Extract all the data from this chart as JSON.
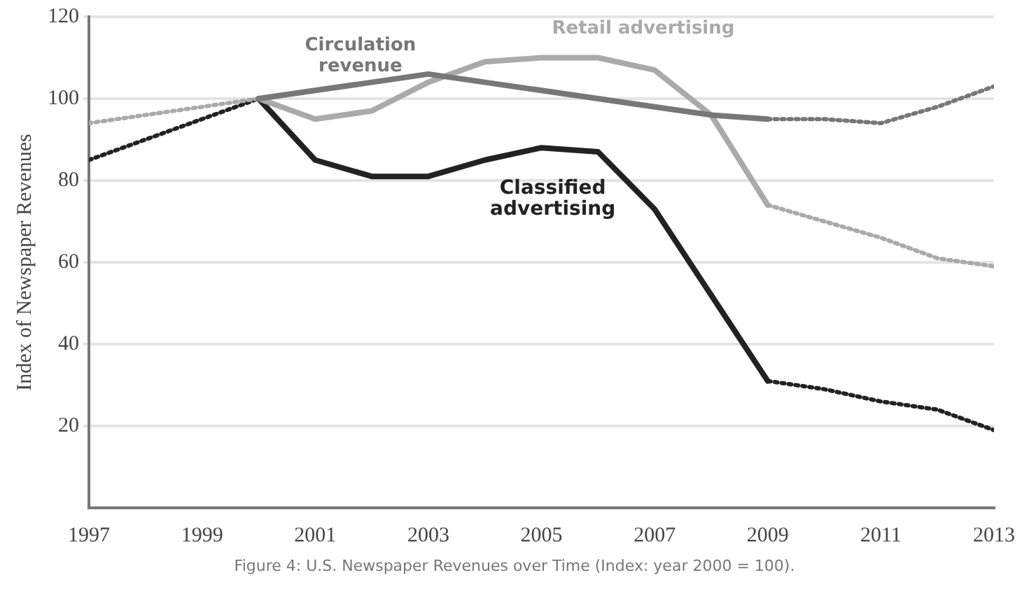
{
  "chart_data": {
    "type": "line",
    "ylabel": "Index of Newspaper Revenues",
    "xlim": [
      1997,
      2013
    ],
    "xticks": [
      1997,
      1999,
      2001,
      2003,
      2005,
      2007,
      2009,
      2011,
      2013
    ],
    "ylim": [
      0,
      120
    ],
    "yticks": [
      20,
      40,
      60,
      80,
      100,
      120
    ],
    "grid": "y",
    "legend": false,
    "marker": "none",
    "annotations": [
      "Figure 4: U.S. Newspaper Revenues over Time (Index: year 2000 = 100)."
    ],
    "series": [
      {
        "name": "Circulation revenue",
        "color": "#777777",
        "line_style": "solid",
        "x": [
          2000,
          2001,
          2002,
          2003,
          2004,
          2005,
          2006,
          2007,
          2008,
          2009
        ],
        "values": [
          100,
          102,
          104,
          106,
          104,
          102,
          100,
          98,
          96,
          95
        ]
      },
      {
        "color": "#777777",
        "line_style": "dotted",
        "x": [
          2009,
          2010,
          2011,
          2012,
          2013
        ],
        "values": [
          95,
          95,
          94,
          98,
          103
        ]
      },
      {
        "name": "Retail advertising",
        "color": "#aaaaaa",
        "line_style": "solid",
        "x": [
          2000,
          2001,
          2002,
          2003,
          2004,
          2005,
          2006,
          2007,
          2008,
          2009
        ],
        "values": [
          100,
          95,
          97,
          104,
          109,
          110,
          110,
          107,
          96,
          74
        ]
      },
      {
        "color": "#aaaaaa",
        "line_style": "dotted",
        "x": [
          1997,
          1998,
          1999,
          2000
        ],
        "values": [
          94,
          96,
          98,
          100
        ]
      },
      {
        "color": "#aaaaaa",
        "line_style": "dotted",
        "x": [
          2009,
          2010,
          2011,
          2012,
          2013
        ],
        "values": [
          74,
          70,
          66,
          61,
          59
        ]
      },
      {
        "name": "Classified advertising",
        "color": "#222222",
        "line_style": "solid",
        "x": [
          2000,
          2001,
          2002,
          2003,
          2004,
          2005,
          2006,
          2007,
          2008,
          2009
        ],
        "values": [
          100,
          85,
          81,
          81,
          85,
          88,
          87,
          73,
          52,
          31
        ]
      },
      {
        "color": "#222222",
        "line_style": "dotted",
        "x": [
          1997,
          1998,
          1999,
          2000
        ],
        "values": [
          85,
          90,
          95,
          100
        ]
      },
      {
        "color": "#222222",
        "line_style": "dotted",
        "x": [
          2009,
          2010,
          2011,
          2012,
          2013
        ],
        "values": [
          31,
          29,
          26,
          24,
          19
        ]
      }
    ]
  }
}
